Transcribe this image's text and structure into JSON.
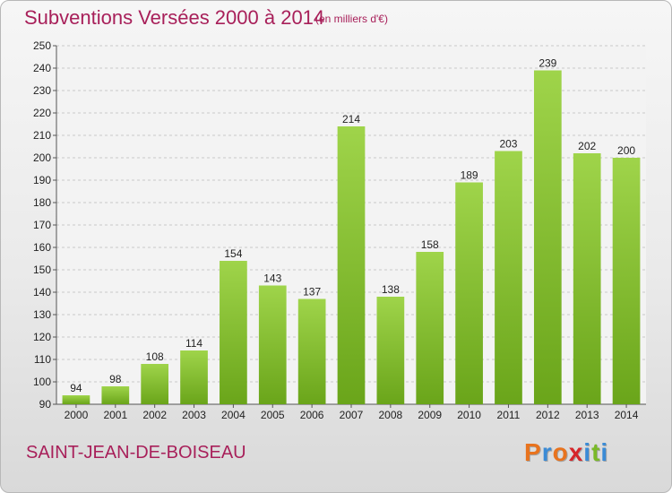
{
  "header": {
    "title": "Subventions Versées 2000 à 2014",
    "subtitle": "(en milliers d'€)"
  },
  "footer": {
    "commune": "SAINT-JEAN-DE-BOISEAU",
    "logo_text": "Proxiti"
  },
  "colors": {
    "accent": "#a8205a",
    "bar_light": "#9fd44a",
    "bar_dark": "#6aa51a",
    "logo": [
      "#e8731e",
      "#3a8bd6",
      "#e8731e",
      "#d6252a",
      "#3a8bd6",
      "#7ab929",
      "#3a8bd6"
    ]
  },
  "chart_data": {
    "type": "bar",
    "title": "Subventions Versées 2000 à 2014",
    "subtitle": "(en milliers d'€)",
    "categories": [
      "2000",
      "2001",
      "2002",
      "2003",
      "2004",
      "2005",
      "2006",
      "2007",
      "2008",
      "2009",
      "2010",
      "2011",
      "2012",
      "2013",
      "2014"
    ],
    "values": [
      94,
      98,
      108,
      114,
      154,
      143,
      137,
      214,
      138,
      158,
      189,
      203,
      239,
      202,
      200
    ],
    "ylim": [
      90,
      250
    ],
    "yticks": [
      90,
      100,
      110,
      120,
      130,
      140,
      150,
      160,
      170,
      180,
      190,
      200,
      210,
      220,
      230,
      240,
      250
    ],
    "grid": true,
    "legend": "none"
  }
}
